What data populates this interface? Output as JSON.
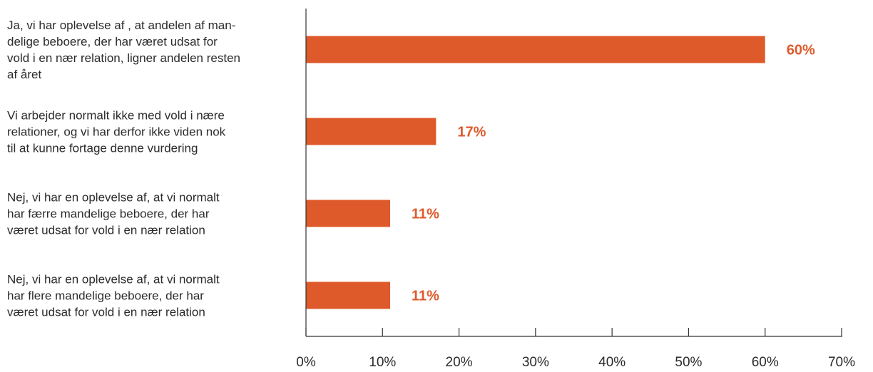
{
  "chart_data": {
    "type": "bar",
    "orientation": "horizontal",
    "categories": [
      [
        "Ja, vi har oplevelse af , at andelen af man-",
        "delige beboere, der har været udsat for",
        "vold i en nær relation, ligner andelen resten",
        "af året"
      ],
      [
        "Vi arbejder normalt ikke med vold i nære",
        "relationer, og vi har derfor ikke viden nok",
        "til at kunne fortage denne vurdering"
      ],
      [
        "Nej, vi har en oplevelse af, at vi normalt",
        "har færre mandelige beboere, der har",
        "været udsat for vold i en nær relation"
      ],
      [
        "Nej, vi har en oplevelse af, at vi normalt",
        "har flere mandelige beboere, der har",
        "været udsat for vold i en nær relation"
      ]
    ],
    "values": [
      60,
      17,
      11,
      11
    ],
    "data_labels": [
      "60%",
      "17%",
      "11%",
      "11%"
    ],
    "xlim": [
      0,
      70
    ],
    "x_ticks": [
      0,
      10,
      20,
      30,
      40,
      50,
      60,
      70
    ],
    "x_tick_labels": [
      "0%",
      "10%",
      "20%",
      "30%",
      "40%",
      "50%",
      "60%",
      "70%"
    ],
    "bar_color": "#df5a2b",
    "label_color": "#df5a2b",
    "axis_color": "#333333",
    "grid": false,
    "legend": "none"
  }
}
